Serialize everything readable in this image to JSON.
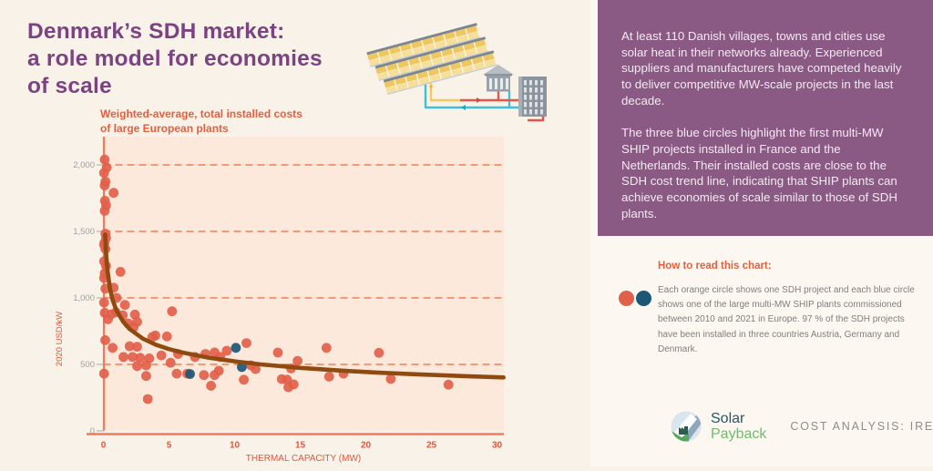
{
  "header": {
    "title": "Denmark’s SDH market:\na role model for economies\nof scale"
  },
  "chart_data": {
    "type": "scatter",
    "title": "Weighted-average, total installed costs\nof large European plants",
    "xlabel": "THERMAL CAPACITY (MW)",
    "ylabel": "2020 USD/kW",
    "xlim": [
      0,
      30.5
    ],
    "ylim": [
      0,
      2150
    ],
    "xticks": [
      0,
      5,
      10,
      15,
      20,
      25,
      30
    ],
    "yticks": [
      0,
      500,
      1000,
      1500,
      2000
    ],
    "ytick_labels": [
      "0",
      "500",
      "1,000",
      "1,500",
      "2,000"
    ],
    "grid": "horizontal dashed lines at yticks (orange), shown for 500-2000",
    "legend_position": "right panel (how-to block)",
    "series": [
      {
        "name": "SDH projects (orange circles)",
        "color": "#e2604a",
        "points": [
          [
            0.1,
            2040
          ],
          [
            0.25,
            1980
          ],
          [
            0.05,
            1940
          ],
          [
            0.15,
            1875
          ],
          [
            0.1,
            1845
          ],
          [
            0.78,
            1790
          ],
          [
            0.12,
            1730
          ],
          [
            0.2,
            1695
          ],
          [
            0.1,
            1655
          ],
          [
            0.15,
            1483
          ],
          [
            0.2,
            1450
          ],
          [
            0.08,
            1415
          ],
          [
            0.05,
            1400
          ],
          [
            0.15,
            1368
          ],
          [
            0.05,
            1275
          ],
          [
            0.2,
            1240
          ],
          [
            1.3,
            1196
          ],
          [
            0.1,
            1185
          ],
          [
            0.05,
            1150
          ],
          [
            0.78,
            1077
          ],
          [
            0.15,
            1070
          ],
          [
            1.0,
            1000
          ],
          [
            0.05,
            965
          ],
          [
            1.64,
            947
          ],
          [
            5.23,
            899
          ],
          [
            0.95,
            892
          ],
          [
            0.1,
            888
          ],
          [
            0.6,
            877
          ],
          [
            2.4,
            875
          ],
          [
            1.47,
            870
          ],
          [
            0.35,
            840
          ],
          [
            2.57,
            820
          ],
          [
            1.88,
            808
          ],
          [
            2.3,
            779
          ],
          [
            3.96,
            717
          ],
          [
            3.73,
            706
          ],
          [
            4.84,
            710
          ],
          [
            0.14,
            682
          ],
          [
            10.9,
            660
          ],
          [
            2.0,
            637
          ],
          [
            2.57,
            632
          ],
          [
            0.7,
            625
          ],
          [
            17.0,
            625
          ],
          [
            9.4,
            603
          ],
          [
            13.3,
            589
          ],
          [
            21.0,
            587
          ],
          [
            8.47,
            590
          ],
          [
            5.69,
            579
          ],
          [
            7.78,
            579
          ],
          [
            4.42,
            568
          ],
          [
            1.53,
            556
          ],
          [
            2.22,
            556
          ],
          [
            6.97,
            556
          ],
          [
            8.9,
            556
          ],
          [
            2.8,
            549
          ],
          [
            3.49,
            545
          ],
          [
            14.8,
            527
          ],
          [
            5.12,
            512
          ],
          [
            3.26,
            493
          ],
          [
            11.25,
            493
          ],
          [
            2.57,
            488
          ],
          [
            14.3,
            470
          ],
          [
            11.6,
            465
          ],
          [
            8.8,
            453
          ],
          [
            0.05,
            431
          ],
          [
            5.58,
            431
          ],
          [
            6.39,
            431
          ],
          [
            18.3,
            431
          ],
          [
            3.26,
            413
          ],
          [
            7.66,
            420
          ],
          [
            8.47,
            420
          ],
          [
            17.2,
            408
          ],
          [
            13.6,
            390
          ],
          [
            21.9,
            391
          ],
          [
            10.7,
            385
          ],
          [
            14.0,
            385
          ],
          [
            26.3,
            348
          ],
          [
            14.5,
            350
          ],
          [
            8.2,
            340
          ],
          [
            14.1,
            328
          ],
          [
            3.38,
            240
          ]
        ]
      },
      {
        "name": "SHIP plants (blue circles)",
        "color": "#1c5776",
        "points": [
          [
            6.6,
            428
          ],
          [
            10.1,
            625
          ],
          [
            10.55,
            480
          ]
        ]
      },
      {
        "name": "SDH cost trend line",
        "type": "line",
        "color": "#8f4a10",
        "points": [
          [
            0.13,
            1477
          ],
          [
            0.2,
            1337
          ],
          [
            0.3,
            1214
          ],
          [
            0.5,
            1071
          ],
          [
            0.7,
            984
          ],
          [
            1,
            905
          ],
          [
            1.5,
            822
          ],
          [
            2,
            766
          ],
          [
            3,
            694
          ],
          [
            4,
            648
          ],
          [
            5,
            615
          ],
          [
            6,
            590
          ],
          [
            8,
            551
          ],
          [
            10,
            523
          ],
          [
            12,
            500
          ],
          [
            15,
            474
          ],
          [
            18,
            454
          ],
          [
            21,
            438
          ],
          [
            24,
            425
          ],
          [
            27,
            414
          ],
          [
            30.5,
            402
          ]
        ]
      }
    ]
  },
  "right_panel": {
    "paragraph1": "At least 110 Danish villages, towns and cities use solar heat in their networks already. Experienced suppliers and manufacturers have competed heavily to deliver competitive MW-scale projects in the last decade.",
    "paragraph2": "The three blue circles highlight the first multi-MW SHIP projects installed in France and the Netherlands. Their installed costs are close to the SDH cost trend line, indicating that SHIP plants can achieve economies of scale similar to those of SDH plants.",
    "how_to": {
      "heading": "How to read this chart:",
      "body": "Each orange circle shows one SDH project and each blue circle shows one of the large multi-MW SHIP plants commissioned between 2010 and 2021 in Europe. 97 % of the SDH projects have been installed in three countries Austria, Germany and Denmark.",
      "legend": [
        {
          "name": "SDH project",
          "color": "#e2604a"
        },
        {
          "name": "SHIP plant",
          "color": "#1c5776"
        }
      ]
    }
  },
  "footer": {
    "logo_line1": "Solar",
    "logo_line2": "Payback",
    "credit": "COST ANALYSIS: IRENA"
  },
  "colors": {
    "title_purple": "#7d4282",
    "box_purple": "#8a5a84",
    "accent_orange": "#e4603e",
    "plot_background": "#fce9dc",
    "axis_salmon": "#f4795b",
    "gridline": "#ef8050",
    "tick_label_gray": "#9f9f9f",
    "page_cream": "#f8f2e9"
  }
}
